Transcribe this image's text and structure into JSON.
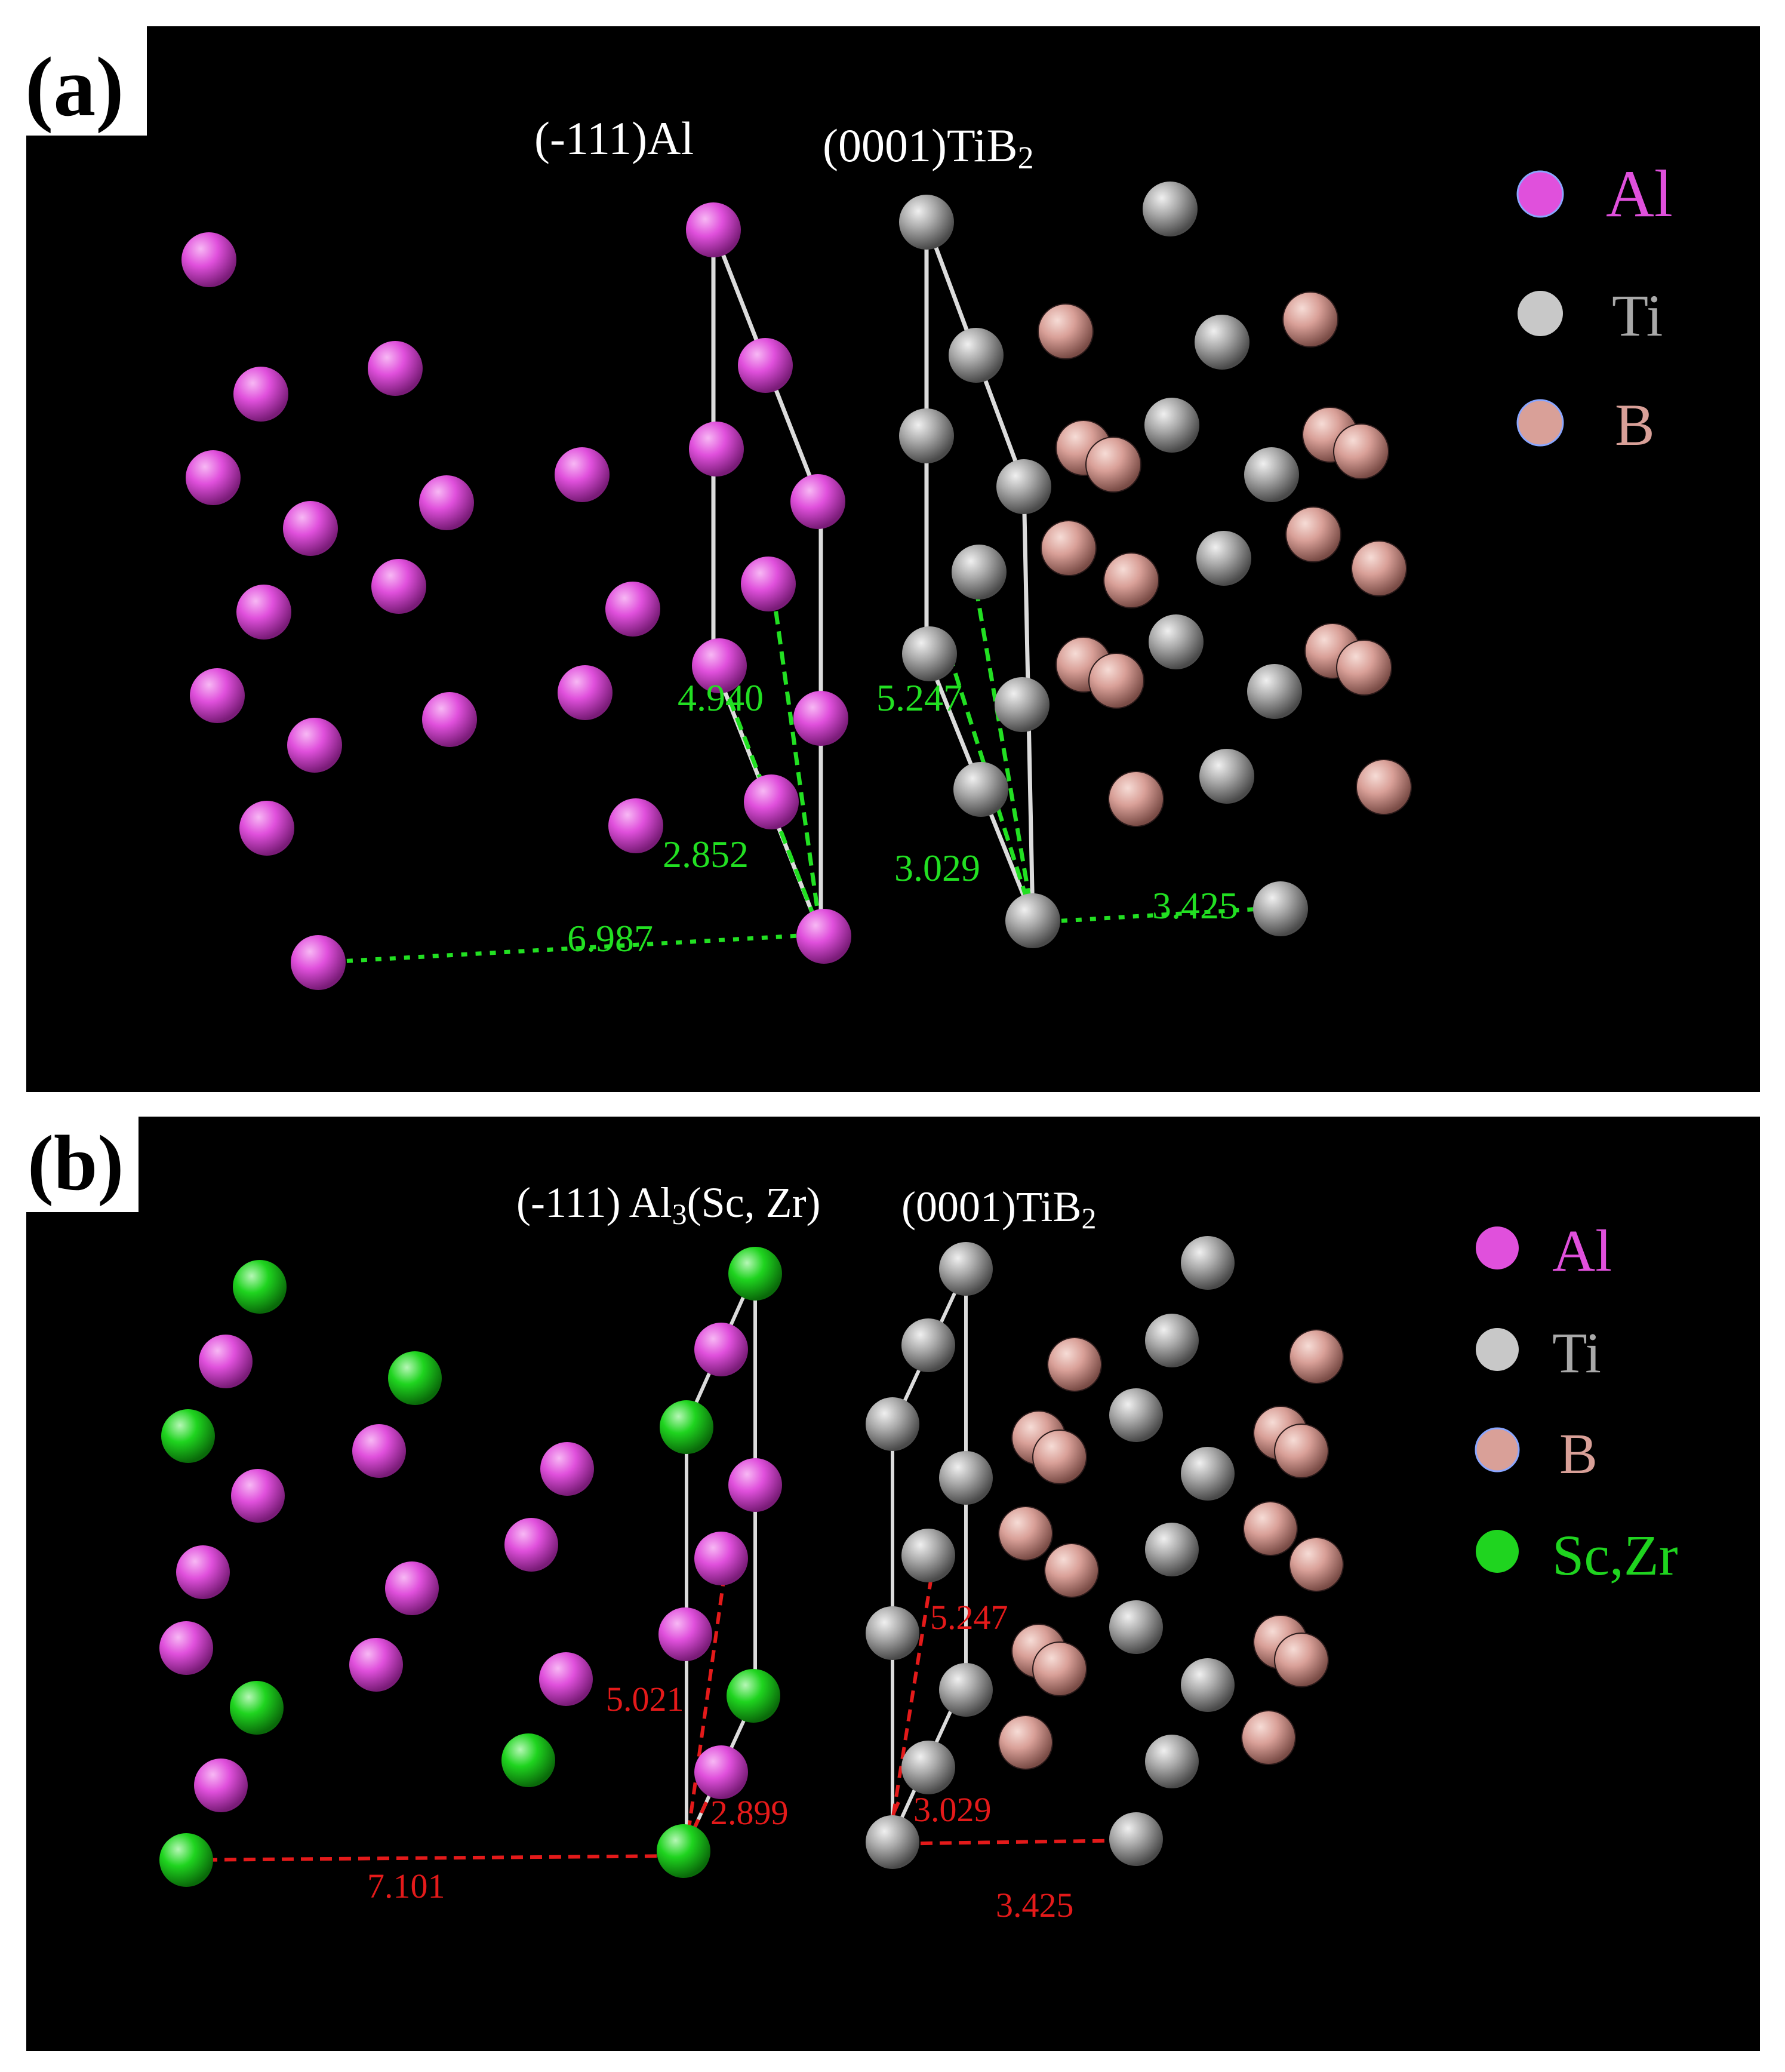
{
  "colors": {
    "al": "#e050dc",
    "ti": "#a9a9a9",
    "b": "#d9a098",
    "sc_zr": "#1fd41f",
    "measure_a": "#22e022",
    "measure_b": "#e41a1a",
    "background": "#000000",
    "plane_outline": "#dcdcdc",
    "text_white": "#ffffff"
  },
  "panels": [
    {
      "id": "a",
      "label": "(a)",
      "titles": {
        "left": "(-111)Al",
        "right": "(0001)TiB",
        "right_sub": "2"
      },
      "legend": [
        {
          "text": "Al",
          "color_key": "al"
        },
        {
          "text": "Ti",
          "color_key": "ti"
        },
        {
          "text": "B",
          "color_key": "b"
        }
      ],
      "measurements": [
        "4.940",
        "5.247",
        "2.852",
        "3.029",
        "6.987",
        "3.425"
      ]
    },
    {
      "id": "b",
      "label": "(b)",
      "titles": {
        "left": "(-111) Al",
        "left_sub": "3",
        "left_tail": "(Sc, Zr)",
        "right": "(0001)TiB",
        "right_sub": "2"
      },
      "legend": [
        {
          "text": "Al",
          "color_key": "al"
        },
        {
          "text": "Ti",
          "color_key": "ti"
        },
        {
          "text": "B",
          "color_key": "b"
        },
        {
          "text": "Sc,Zr",
          "color_key": "sc_zr"
        }
      ],
      "measurements": [
        "5.247",
        "5.021",
        "2.899",
        "3.029",
        "7.101",
        "3.425"
      ]
    }
  ]
}
